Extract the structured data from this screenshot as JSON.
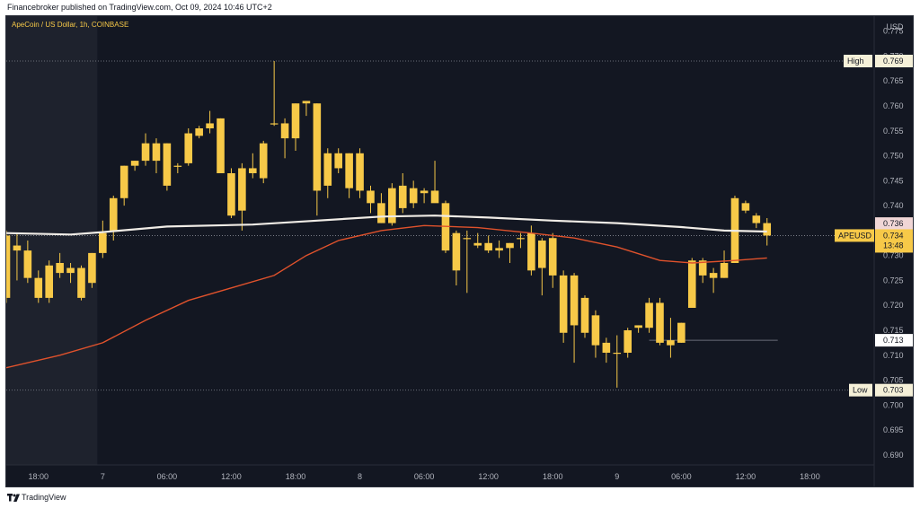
{
  "header": {
    "publish_text": "Financebroker published on TradingView.com, Oct 09, 2024 10:46 UTC+2"
  },
  "symbol_label": "ApeCoin / US Dollar, 1h, COINBASE",
  "currency": "USD",
  "price_labels": {
    "high_text": "High",
    "high_value": "0.769",
    "low_text": "Low",
    "low_value": "0.703",
    "ma_value": "0.736",
    "ticker": "APEUSD",
    "last_price": "0.734",
    "countdown": "13:48",
    "level_value": "0.713"
  },
  "footer": {
    "brand": "TradingView"
  },
  "colors": {
    "background": "#131722",
    "candle": "#f7c948",
    "ma_fast": "#f0ece6",
    "ma_slow": "#e0522c",
    "axis_text": "#b2b5be"
  },
  "chart_data": {
    "type": "candlestick",
    "title": "ApeCoin / US Dollar, 1h, COINBASE",
    "yaxis": {
      "ticks": [
        "0.690",
        "0.695",
        "0.700",
        "0.705",
        "0.710",
        "0.715",
        "0.720",
        "0.725",
        "0.730",
        "0.735",
        "0.740",
        "0.745",
        "0.750",
        "0.755",
        "0.760",
        "0.765",
        "0.770",
        "0.775"
      ],
      "range": [
        0.688,
        0.778
      ],
      "unit": "USD"
    },
    "xaxis": {
      "ticks": [
        "18:00",
        "7",
        "06:00",
        "12:00",
        "18:00",
        "8",
        "06:00",
        "12:00",
        "18:00",
        "9",
        "06:00",
        "12:00",
        "18:00"
      ],
      "range_hours": [
        -9,
        72
      ]
    },
    "candles": [
      {
        "t": -9,
        "o": 0.7215,
        "h": 0.735,
        "l": 0.7205,
        "c": 0.734
      },
      {
        "t": -8,
        "o": 0.732,
        "h": 0.7345,
        "l": 0.725,
        "c": 0.731
      },
      {
        "t": -7,
        "o": 0.731,
        "h": 0.733,
        "l": 0.7245,
        "c": 0.7255
      },
      {
        "t": -6,
        "o": 0.7255,
        "h": 0.727,
        "l": 0.7205,
        "c": 0.7215
      },
      {
        "t": -5,
        "o": 0.7215,
        "h": 0.729,
        "l": 0.7205,
        "c": 0.728
      },
      {
        "t": -4,
        "o": 0.7265,
        "h": 0.7305,
        "l": 0.7255,
        "c": 0.7285
      },
      {
        "t": -3,
        "o": 0.7275,
        "h": 0.7285,
        "l": 0.7245,
        "c": 0.7265
      },
      {
        "t": -2,
        "o": 0.7275,
        "h": 0.728,
        "l": 0.721,
        "c": 0.7215
      },
      {
        "t": -1,
        "o": 0.7245,
        "h": 0.7305,
        "l": 0.7235,
        "c": 0.7305
      },
      {
        "t": 0,
        "o": 0.7305,
        "h": 0.737,
        "l": 0.7295,
        "c": 0.7345
      },
      {
        "t": 1,
        "o": 0.735,
        "h": 0.742,
        "l": 0.733,
        "c": 0.7415
      },
      {
        "t": 2,
        "o": 0.7415,
        "h": 0.748,
        "l": 0.74,
        "c": 0.748
      },
      {
        "t": 3,
        "o": 0.748,
        "h": 0.749,
        "l": 0.747,
        "c": 0.749
      },
      {
        "t": 4,
        "o": 0.749,
        "h": 0.7545,
        "l": 0.748,
        "c": 0.7525
      },
      {
        "t": 5,
        "o": 0.7525,
        "h": 0.7535,
        "l": 0.7465,
        "c": 0.749
      },
      {
        "t": 6,
        "o": 0.7525,
        "h": 0.7525,
        "l": 0.743,
        "c": 0.744
      },
      {
        "t": 7,
        "o": 0.748,
        "h": 0.7485,
        "l": 0.7465,
        "c": 0.748
      },
      {
        "t": 8,
        "o": 0.7485,
        "h": 0.7555,
        "l": 0.748,
        "c": 0.7545
      },
      {
        "t": 9,
        "o": 0.754,
        "h": 0.756,
        "l": 0.7535,
        "c": 0.7555
      },
      {
        "t": 10,
        "o": 0.7555,
        "h": 0.759,
        "l": 0.7545,
        "c": 0.7565
      },
      {
        "t": 11,
        "o": 0.7575,
        "h": 0.7575,
        "l": 0.7465,
        "c": 0.7465
      },
      {
        "t": 12,
        "o": 0.7465,
        "h": 0.7475,
        "l": 0.7375,
        "c": 0.738
      },
      {
        "t": 13,
        "o": 0.739,
        "h": 0.7485,
        "l": 0.735,
        "c": 0.7475
      },
      {
        "t": 14,
        "o": 0.7475,
        "h": 0.7505,
        "l": 0.7455,
        "c": 0.7465
      },
      {
        "t": 15,
        "o": 0.7455,
        "h": 0.753,
        "l": 0.7445,
        "c": 0.7525
      },
      {
        "t": 16,
        "o": 0.7565,
        "h": 0.769,
        "l": 0.756,
        "c": 0.7565
      },
      {
        "t": 17,
        "o": 0.7565,
        "h": 0.7575,
        "l": 0.7495,
        "c": 0.7535
      },
      {
        "t": 18,
        "o": 0.7535,
        "h": 0.7605,
        "l": 0.751,
        "c": 0.7605
      },
      {
        "t": 19,
        "o": 0.7605,
        "h": 0.761,
        "l": 0.758,
        "c": 0.761
      },
      {
        "t": 20,
        "o": 0.7605,
        "h": 0.7605,
        "l": 0.738,
        "c": 0.743
      },
      {
        "t": 21,
        "o": 0.744,
        "h": 0.7515,
        "l": 0.7415,
        "c": 0.7505
      },
      {
        "t": 22,
        "o": 0.7505,
        "h": 0.7515,
        "l": 0.7465,
        "c": 0.7475
      },
      {
        "t": 23,
        "o": 0.7505,
        "h": 0.7505,
        "l": 0.7415,
        "c": 0.7435
      },
      {
        "t": 24,
        "o": 0.7505,
        "h": 0.7515,
        "l": 0.7415,
        "c": 0.743
      },
      {
        "t": 25,
        "o": 0.743,
        "h": 0.744,
        "l": 0.7385,
        "c": 0.7405
      },
      {
        "t": 26,
        "o": 0.7405,
        "h": 0.7425,
        "l": 0.7365,
        "c": 0.7365
      },
      {
        "t": 27,
        "o": 0.7365,
        "h": 0.7445,
        "l": 0.736,
        "c": 0.7435
      },
      {
        "t": 28,
        "o": 0.7395,
        "h": 0.7465,
        "l": 0.7385,
        "c": 0.744
      },
      {
        "t": 29,
        "o": 0.7435,
        "h": 0.745,
        "l": 0.7395,
        "c": 0.7405
      },
      {
        "t": 30,
        "o": 0.743,
        "h": 0.7435,
        "l": 0.7405,
        "c": 0.7425
      },
      {
        "t": 31,
        "o": 0.743,
        "h": 0.749,
        "l": 0.741,
        "c": 0.7405
      },
      {
        "t": 32,
        "o": 0.7405,
        "h": 0.741,
        "l": 0.7305,
        "c": 0.731
      },
      {
        "t": 33,
        "o": 0.7345,
        "h": 0.735,
        "l": 0.724,
        "c": 0.727
      },
      {
        "t": 34,
        "o": 0.7335,
        "h": 0.735,
        "l": 0.7225,
        "c": 0.7335
      },
      {
        "t": 35,
        "o": 0.7325,
        "h": 0.7345,
        "l": 0.7315,
        "c": 0.732
      },
      {
        "t": 36,
        "o": 0.7325,
        "h": 0.734,
        "l": 0.7305,
        "c": 0.731
      },
      {
        "t": 37,
        "o": 0.7315,
        "h": 0.733,
        "l": 0.7295,
        "c": 0.731
      },
      {
        "t": 38,
        "o": 0.7315,
        "h": 0.7325,
        "l": 0.7285,
        "c": 0.7325
      },
      {
        "t": 39,
        "o": 0.7335,
        "h": 0.7345,
        "l": 0.7315,
        "c": 0.7335
      },
      {
        "t": 40,
        "o": 0.7345,
        "h": 0.736,
        "l": 0.726,
        "c": 0.727
      },
      {
        "t": 41,
        "o": 0.733,
        "h": 0.7335,
        "l": 0.722,
        "c": 0.7275
      },
      {
        "t": 42,
        "o": 0.7335,
        "h": 0.7345,
        "l": 0.7235,
        "c": 0.726
      },
      {
        "t": 43,
        "o": 0.726,
        "h": 0.727,
        "l": 0.7125,
        "c": 0.7145
      },
      {
        "t": 44,
        "o": 0.726,
        "h": 0.7265,
        "l": 0.7085,
        "c": 0.716
      },
      {
        "t": 45,
        "o": 0.7215,
        "h": 0.722,
        "l": 0.7135,
        "c": 0.7145
      },
      {
        "t": 46,
        "o": 0.718,
        "h": 0.719,
        "l": 0.7095,
        "c": 0.712
      },
      {
        "t": 47,
        "o": 0.7125,
        "h": 0.7135,
        "l": 0.7085,
        "c": 0.7105
      },
      {
        "t": 48,
        "o": 0.7105,
        "h": 0.714,
        "l": 0.7035,
        "c": 0.7105
      },
      {
        "t": 49,
        "o": 0.7105,
        "h": 0.7155,
        "l": 0.7095,
        "c": 0.715
      },
      {
        "t": 50,
        "o": 0.7155,
        "h": 0.716,
        "l": 0.7145,
        "c": 0.716
      },
      {
        "t": 51,
        "o": 0.7155,
        "h": 0.7215,
        "l": 0.7145,
        "c": 0.7205
      },
      {
        "t": 52,
        "o": 0.7205,
        "h": 0.7215,
        "l": 0.712,
        "c": 0.7125
      },
      {
        "t": 53,
        "o": 0.713,
        "h": 0.7175,
        "l": 0.7095,
        "c": 0.712
      },
      {
        "t": 54,
        "o": 0.7125,
        "h": 0.7165,
        "l": 0.7125,
        "c": 0.7165
      },
      {
        "t": 55,
        "o": 0.7195,
        "h": 0.7295,
        "l": 0.7195,
        "c": 0.729
      },
      {
        "t": 56,
        "o": 0.729,
        "h": 0.7295,
        "l": 0.7245,
        "c": 0.726
      },
      {
        "t": 57,
        "o": 0.7265,
        "h": 0.7275,
        "l": 0.7225,
        "c": 0.7255
      },
      {
        "t": 58,
        "o": 0.7255,
        "h": 0.731,
        "l": 0.7255,
        "c": 0.7285
      },
      {
        "t": 59,
        "o": 0.7285,
        "h": 0.742,
        "l": 0.7285,
        "c": 0.7415
      },
      {
        "t": 60,
        "o": 0.7405,
        "h": 0.741,
        "l": 0.7385,
        "c": 0.739
      },
      {
        "t": 61,
        "o": 0.738,
        "h": 0.7385,
        "l": 0.7355,
        "c": 0.7365
      },
      {
        "t": 62,
        "o": 0.7365,
        "h": 0.7375,
        "l": 0.732,
        "c": 0.734
      }
    ],
    "series": [
      {
        "name": "",
        "kind": "moving-average",
        "color": "#f0ece6",
        "points": [
          [
            -9,
            0.7345
          ],
          [
            -3,
            0.7342
          ],
          [
            0,
            0.7347
          ],
          [
            6,
            0.7358
          ],
          [
            14,
            0.7362
          ],
          [
            20,
            0.737
          ],
          [
            26,
            0.7378
          ],
          [
            31,
            0.738
          ],
          [
            36,
            0.7376
          ],
          [
            42,
            0.737
          ],
          [
            48,
            0.7365
          ],
          [
            54,
            0.7357
          ],
          [
            58,
            0.735
          ],
          [
            62,
            0.7348
          ]
        ]
      },
      {
        "name": "",
        "kind": "moving-average",
        "color": "#e0522c",
        "points": [
          [
            -9,
            0.7075
          ],
          [
            -4,
            0.71
          ],
          [
            0,
            0.7125
          ],
          [
            4,
            0.717
          ],
          [
            8,
            0.721
          ],
          [
            12,
            0.7235
          ],
          [
            16,
            0.726
          ],
          [
            19,
            0.73
          ],
          [
            22,
            0.733
          ],
          [
            26,
            0.735
          ],
          [
            30,
            0.736
          ],
          [
            35,
            0.7356
          ],
          [
            40,
            0.7345
          ],
          [
            44,
            0.7335
          ],
          [
            48,
            0.7317
          ],
          [
            52,
            0.729
          ],
          [
            55,
            0.7285
          ],
          [
            59,
            0.729
          ],
          [
            62,
            0.7295
          ]
        ]
      }
    ],
    "levels": [
      {
        "label": "High",
        "value": 0.769
      },
      {
        "label": "Low",
        "value": 0.703
      },
      {
        "label": "",
        "value": 0.713,
        "from_t": 51,
        "to_t": 63
      }
    ],
    "shaded_session": {
      "from_t": -9,
      "to_t": -0.5
    },
    "grid": false
  }
}
